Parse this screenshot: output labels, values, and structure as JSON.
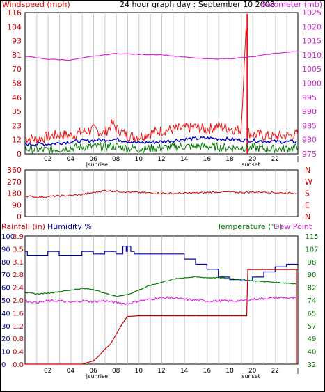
{
  "header": {
    "left_label": "Windspeed (mph)",
    "title": "24 hour graph day : September 10 2008",
    "right_label": "Barometer (mb)"
  },
  "colors": {
    "wind": "#ee1111",
    "wind_avg": "#0000cc",
    "wind_low": "#007700",
    "barometer": "#dd22dd",
    "direction": "#cc0000",
    "rain": "#cc0000",
    "humidity": "#0000aa",
    "temperature": "#007700",
    "dewpoint": "#dd22dd",
    "grid": "#c8c8c8",
    "left_text": "#cc0000",
    "right_text": "#cc22cc",
    "humidity_text": "#000099",
    "temp_text": "#007700"
  },
  "x_axis": {
    "ticks": [
      "02",
      "04",
      "06",
      "08",
      "10",
      "12",
      "14",
      "16",
      "18",
      "20",
      "22"
    ],
    "end_tick": "|",
    "sunrise_label": "sunrise",
    "sunset_label": "sunset",
    "sunrise_hour": 5.6,
    "sunset_hour": 19.3
  },
  "panel_wind": {
    "left_ticks": [
      "116",
      "104",
      "93",
      "81",
      "70",
      "58",
      "46",
      "35",
      "23",
      "12",
      "0"
    ],
    "right_ticks": [
      "1025",
      "1020",
      "1015",
      "1010",
      "1005",
      "1000",
      "995",
      "990",
      "985",
      "980",
      "975"
    ]
  },
  "panel_direction": {
    "left_ticks": [
      "360",
      "270",
      "180",
      "90",
      "0"
    ],
    "compass": [
      "N",
      "W",
      "S",
      "E",
      "N"
    ]
  },
  "panel_bottom": {
    "rain_label": "Rainfall (in)",
    "humidity_label": "Humidity %",
    "temp_label": "Temperature (°F)",
    "dew_label": "Dew Point",
    "humidity_ticks": [
      "100",
      "90",
      "80",
      "70",
      "60",
      "50",
      "40",
      "30",
      "20",
      "10",
      "0"
    ],
    "rain_ticks": [
      "3.9",
      "3.5",
      "3.1",
      "2.8",
      "2.4",
      "2.0",
      "1.6",
      "1.2",
      "0.8",
      "0.4",
      "0.0"
    ],
    "temp_ticks": [
      "115",
      "107",
      "98",
      "90",
      "82",
      "74",
      "65",
      "57",
      "49",
      "40",
      "32"
    ]
  },
  "chart_data": [
    {
      "type": "line",
      "title": "24 hour graph day : September 10 2008",
      "xlabel": "",
      "ylabel": "Windspeed (mph)",
      "ylabel_right": "Barometer (mb)",
      "xlim": [
        0,
        24
      ],
      "ylim": [
        0,
        116
      ],
      "ylim_right": [
        975,
        1025
      ],
      "series": [
        {
          "name": "Windspeed (mph)",
          "x": [
            0,
            1,
            2,
            3,
            4,
            5,
            6,
            7,
            7.7,
            8,
            9,
            10,
            11,
            12,
            13,
            14,
            15,
            16,
            17,
            18,
            19,
            19.5,
            19.6,
            20,
            21,
            22,
            23,
            24
          ],
          "values": [
            13,
            12,
            14,
            16,
            15,
            18,
            20,
            17,
            25,
            21,
            15,
            14,
            17,
            19,
            20,
            21,
            22,
            20,
            23,
            21,
            19,
            115,
            18,
            16,
            15,
            14,
            15,
            16
          ]
        },
        {
          "name": "Wind average",
          "x": [
            0,
            2,
            4,
            6,
            8,
            10,
            12,
            14,
            16,
            18,
            20,
            22,
            24
          ],
          "values": [
            8,
            8,
            10,
            11,
            12,
            9,
            10,
            12,
            13,
            12,
            11,
            10,
            10
          ]
        },
        {
          "name": "Wind low",
          "x": [
            0,
            2,
            4,
            6,
            8,
            10,
            12,
            14,
            16,
            18,
            20,
            22,
            24
          ],
          "values": [
            4,
            3,
            5,
            6,
            6,
            4,
            5,
            6,
            6,
            5,
            5,
            4,
            5
          ]
        },
        {
          "name": "Barometer (mb)",
          "axis": "right",
          "x": [
            0,
            2,
            4,
            6,
            8,
            10,
            12,
            14,
            16,
            18,
            20,
            22,
            24
          ],
          "values": [
            1009.5,
            1008.5,
            1008.2,
            1009.5,
            1010.5,
            1010.2,
            1010.1,
            1009.2,
            1008.6,
            1008.7,
            1009.3,
            1010.6,
            1011.2
          ]
        }
      ]
    },
    {
      "type": "scatter",
      "xlabel": "",
      "ylabel": "Wind direction",
      "xlim": [
        0,
        24
      ],
      "ylim": [
        0,
        360
      ],
      "series": [
        {
          "name": "Wind direction",
          "x": [
            0,
            1,
            2,
            3,
            4,
            5,
            6,
            7,
            8,
            9,
            10,
            11,
            12,
            13,
            14,
            15,
            16,
            17,
            18,
            19,
            20,
            21,
            22,
            23,
            24
          ],
          "values": [
            160,
            150,
            155,
            160,
            162,
            170,
            185,
            200,
            195,
            190,
            185,
            182,
            180,
            178,
            180,
            182,
            185,
            190,
            188,
            186,
            188,
            190,
            185,
            180,
            182
          ]
        }
      ]
    },
    {
      "type": "line",
      "xlabel": "",
      "ylabel": "Humidity %",
      "xlim": [
        0,
        24
      ],
      "ylim": [
        0,
        100
      ],
      "series": [
        {
          "name": "Humidity %",
          "x": [
            0,
            0.2,
            1,
            2,
            3,
            4,
            5,
            6,
            7,
            8,
            8.5,
            8.6,
            8.9,
            9,
            9.3,
            9.6,
            10,
            11,
            12,
            13,
            14,
            15,
            16,
            17,
            18,
            19,
            20,
            21,
            22,
            23,
            24
          ],
          "values": [
            88,
            85,
            85,
            88,
            85,
            85,
            88,
            86,
            88,
            86,
            86,
            92,
            88,
            92,
            88,
            86,
            86,
            86,
            86,
            86,
            82,
            78,
            74,
            68,
            66,
            65,
            68,
            72,
            76,
            78,
            78
          ]
        },
        {
          "name": "Rainfall (in)",
          "axis": "rain",
          "x": [
            0,
            4,
            5,
            6,
            6.5,
            7,
            7.5,
            8,
            8.5,
            9,
            10,
            12,
            14,
            16,
            18,
            19.5,
            19.6,
            24
          ],
          "values": [
            0,
            0,
            0,
            0.1,
            0.25,
            0.45,
            0.6,
            0.9,
            1.2,
            1.45,
            1.47,
            1.47,
            1.47,
            1.47,
            1.47,
            1.47,
            2.88,
            2.88
          ]
        },
        {
          "name": "Temperature (°F)",
          "axis": "temp",
          "x": [
            0,
            1,
            2,
            3,
            4,
            5,
            6,
            7,
            8,
            9,
            10,
            11,
            12,
            13,
            14,
            15,
            16,
            17,
            18,
            19,
            20,
            21,
            22,
            23,
            24
          ],
          "values": [
            78.5,
            77.5,
            78,
            79,
            80,
            81,
            80.5,
            78,
            76,
            77,
            80,
            83,
            85,
            87,
            88,
            88.5,
            88,
            88,
            87.5,
            87,
            86,
            85.5,
            85,
            84.5,
            84
          ]
        },
        {
          "name": "Dew Point",
          "axis": "temp",
          "x": [
            0,
            1,
            2,
            3,
            4,
            5,
            6,
            7,
            8,
            9,
            10,
            11,
            12,
            13,
            14,
            15,
            16,
            17,
            18,
            19,
            20,
            21,
            22,
            23,
            24
          ],
          "values": [
            73,
            72,
            73,
            73,
            72,
            73,
            72.5,
            73,
            72,
            71,
            73,
            74,
            75,
            75,
            74,
            73.5,
            73,
            73,
            73,
            73,
            74,
            74.5,
            75,
            75,
            74.5
          ]
        }
      ]
    }
  ]
}
